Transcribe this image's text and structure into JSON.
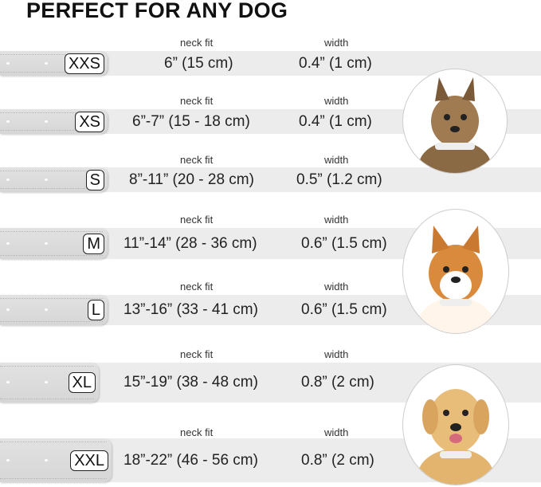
{
  "title": "PERFECT FOR ANY DOG",
  "neck_label": "neck fit",
  "width_label": "width",
  "rows": [
    {
      "size": "XXS",
      "neck": "6” (15 cm)",
      "width": "0.4” (1 cm)"
    },
    {
      "size": "XS",
      "neck": "6”-7” (15 - 18 cm)",
      "width": "0.4” (1 cm)"
    },
    {
      "size": "S",
      "neck": "8”-11” (20 - 28 cm)",
      "width": "0.5” (1.2 cm)"
    },
    {
      "size": "M",
      "neck": "11”-14” (28 - 36 cm)",
      "width": "0.6” (1.5 cm)"
    },
    {
      "size": "L",
      "neck": "13”-16” (33 - 41 cm)",
      "width": "0.6” (1.5 cm)"
    },
    {
      "size": "XL",
      "neck": "15”-19” (38 - 48 cm)",
      "width": "0.8” (2 cm)"
    },
    {
      "size": "XXL",
      "neck": "18”-22” (46 - 56 cm)",
      "width": "0.8” (2 cm)"
    }
  ],
  "dogs": [
    "terrier",
    "corgi",
    "labrador"
  ]
}
